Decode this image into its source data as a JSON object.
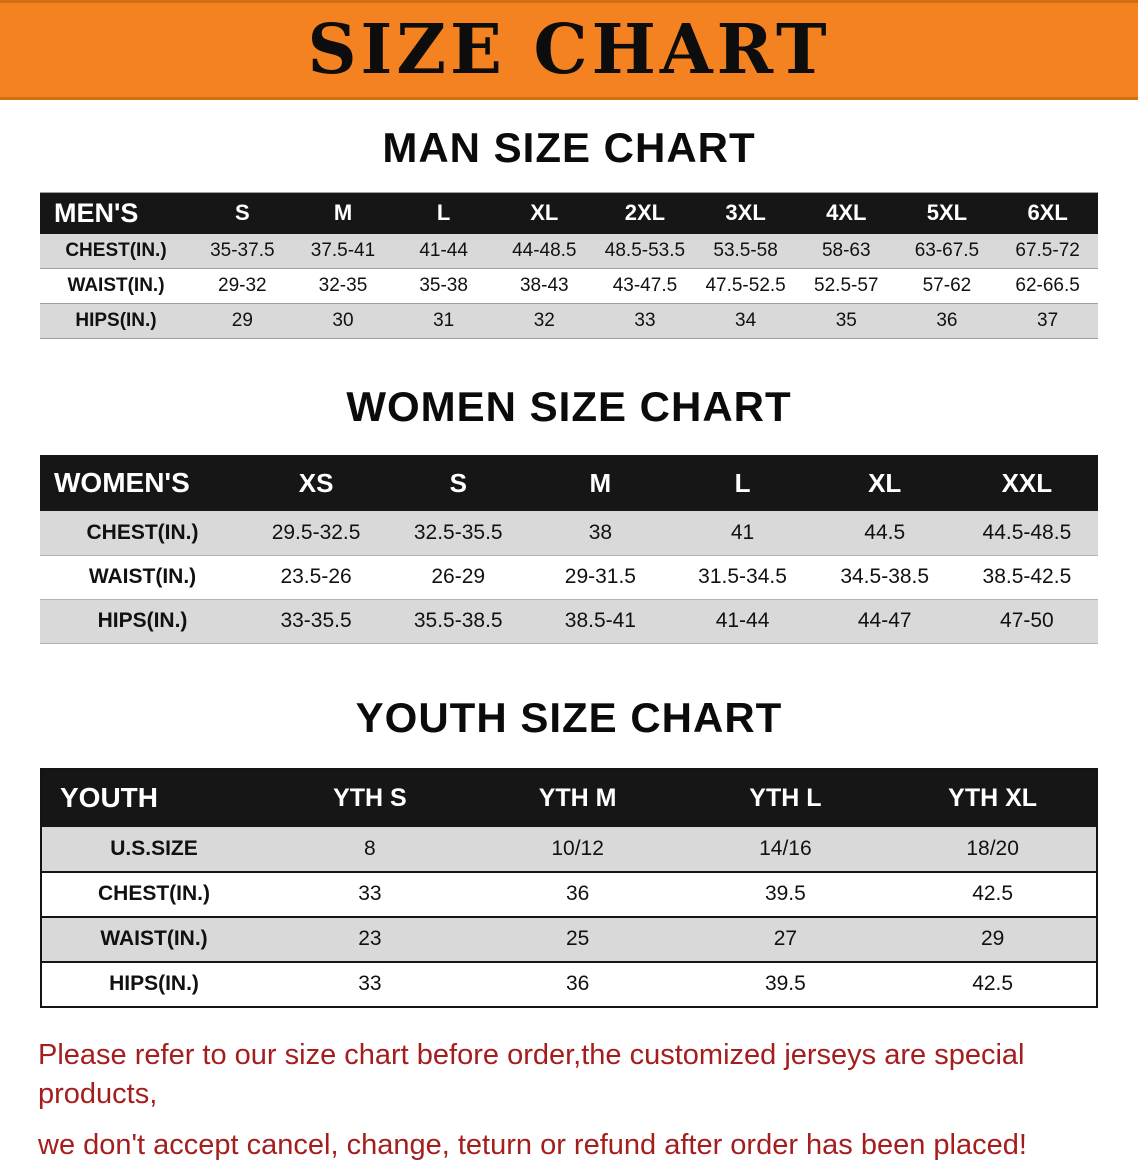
{
  "colors": {
    "banner-orange": "#f58220",
    "table-header-black": "#161616",
    "row-gray": "#d9d9d9",
    "footer-red": "#a51e1e"
  },
  "banner": {
    "title": "SIZE CHART"
  },
  "sections": [
    {
      "heading": "MAN SIZE CHART",
      "table": {
        "header": [
          "MEN'S",
          "S",
          "M",
          "L",
          "XL",
          "2XL",
          "3XL",
          "4XL",
          "5XL",
          "6XL"
        ],
        "rows": [
          [
            "CHEST(IN.)",
            "35-37.5",
            "37.5-41",
            "41-44",
            "44-48.5",
            "48.5-53.5",
            "53.5-58",
            "58-63",
            "63-67.5",
            "67.5-72"
          ],
          [
            "WAIST(IN.)",
            "29-32",
            "32-35",
            "35-38",
            "38-43",
            "43-47.5",
            "47.5-52.5",
            "52.5-57",
            "57-62",
            "62-66.5"
          ],
          [
            "HIPS(IN.)",
            "29",
            "30",
            "31",
            "32",
            "33",
            "34",
            "35",
            "36",
            "37"
          ]
        ]
      }
    },
    {
      "heading": "WOMEN SIZE CHART",
      "table": {
        "header": [
          "WOMEN'S",
          "XS",
          "S",
          "M",
          "L",
          "XL",
          "XXL"
        ],
        "rows": [
          [
            "CHEST(IN.)",
            "29.5-32.5",
            "32.5-35.5",
            "38",
            "41",
            "44.5",
            "44.5-48.5"
          ],
          [
            "WAIST(IN.)",
            "23.5-26",
            "26-29",
            "29-31.5",
            "31.5-34.5",
            "34.5-38.5",
            "38.5-42.5"
          ],
          [
            "HIPS(IN.)",
            "33-35.5",
            "35.5-38.5",
            "38.5-41",
            "41-44",
            "44-47",
            "47-50"
          ]
        ]
      }
    },
    {
      "heading": "YOUTH SIZE CHART",
      "table": {
        "header": [
          "YOUTH",
          "YTH S",
          "YTH M",
          "YTH L",
          "YTH XL"
        ],
        "rows": [
          [
            "U.S.SIZE",
            "8",
            "10/12",
            "14/16",
            "18/20"
          ],
          [
            "CHEST(IN.)",
            "33",
            "36",
            "39.5",
            "42.5"
          ],
          [
            "WAIST(IN.)",
            "23",
            "25",
            "27",
            "29"
          ],
          [
            "HIPS(IN.)",
            "33",
            "36",
            "39.5",
            "42.5"
          ]
        ]
      }
    }
  ],
  "footer": {
    "line1": "Please refer to our size chart before order,the customized jerseys are special products,",
    "line2": "we don't accept cancel, change, teturn or refund after order has been placed!"
  }
}
